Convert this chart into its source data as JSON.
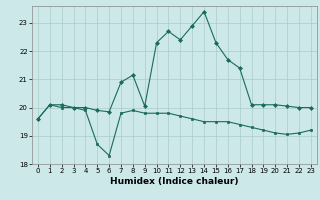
{
  "xlabel": "Humidex (Indice chaleur)",
  "ylabel": "",
  "bg_color": "#cce8e8",
  "grid_color": "#aacccc",
  "line_color": "#1a6b5a",
  "xlim": [
    -0.5,
    23.5
  ],
  "ylim": [
    18,
    23.6
  ],
  "yticks": [
    18,
    19,
    20,
    21,
    22,
    23
  ],
  "xticks": [
    0,
    1,
    2,
    3,
    4,
    5,
    6,
    7,
    8,
    9,
    10,
    11,
    12,
    13,
    14,
    15,
    16,
    17,
    18,
    19,
    20,
    21,
    22,
    23
  ],
  "curve1_x": [
    0,
    1,
    2,
    3,
    4,
    5,
    6,
    7,
    8,
    9,
    10,
    11,
    12,
    13,
    14,
    15,
    16,
    17,
    18,
    19,
    20,
    21,
    22,
    23
  ],
  "curve1_y": [
    19.6,
    20.1,
    20.0,
    20.0,
    19.9,
    18.7,
    18.3,
    19.8,
    19.9,
    19.8,
    19.8,
    19.8,
    19.7,
    19.6,
    19.5,
    19.5,
    19.5,
    19.4,
    19.3,
    19.2,
    19.1,
    19.05,
    19.1,
    19.2
  ],
  "curve2_x": [
    0,
    1,
    2,
    3,
    4,
    5,
    6,
    7,
    8,
    9,
    10,
    11,
    12,
    13,
    14,
    15,
    16,
    17,
    18,
    19,
    20,
    21,
    22,
    23
  ],
  "curve2_y": [
    19.6,
    20.1,
    20.1,
    20.0,
    20.0,
    19.9,
    19.85,
    20.9,
    21.15,
    20.05,
    22.3,
    22.7,
    22.4,
    22.9,
    23.4,
    22.3,
    21.7,
    21.4,
    20.1,
    20.1,
    20.1,
    20.05,
    20.0,
    20.0
  ]
}
